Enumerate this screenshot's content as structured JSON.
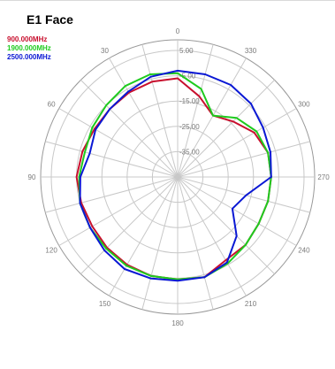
{
  "chart_data": {
    "type": "polar-line",
    "title": "E1 Face",
    "radial_axis": {
      "ticks": [
        "5.00",
        "-5.00",
        "-15.00",
        "-25.00",
        "-35.00"
      ],
      "range_db": [
        -45,
        5
      ]
    },
    "angle_labels": [
      "0",
      "30",
      "60",
      "90",
      "120",
      "150",
      "180",
      "210",
      "240",
      "270",
      "300",
      "330"
    ],
    "grid": true,
    "legend_position": "top-left",
    "series": [
      {
        "name": "900.000MHz",
        "color": "#c8102e",
        "angles": [
          0,
          15,
          30,
          45,
          60,
          75,
          90,
          105,
          120,
          135,
          150,
          165,
          180,
          195,
          210,
          225,
          240,
          255,
          270,
          285,
          300,
          315,
          330,
          345
        ],
        "values": [
          -6,
          -6,
          -6.5,
          -7,
          -7,
          -6,
          -5,
          -5.5,
          -6,
          -5.5,
          -5,
          -4.5,
          -4.5,
          -4,
          -7,
          -7,
          -8,
          -8,
          -8,
          -8,
          -10,
          -14,
          -17,
          -12
        ]
      },
      {
        "name": "1900.000MHz",
        "color": "#1ecb1e",
        "angles": [
          0,
          15,
          30,
          45,
          60,
          75,
          90,
          105,
          120,
          135,
          150,
          165,
          180,
          195,
          210,
          225,
          240,
          255,
          270,
          285,
          300,
          315,
          330,
          345
        ],
        "values": [
          -4,
          -3,
          -3.5,
          -5,
          -6,
          -7,
          -6,
          -5,
          -5,
          -5,
          -4.5,
          -4.5,
          -4.5,
          -4,
          -5.5,
          -7,
          -8,
          -8,
          -8,
          -8,
          -9,
          -12,
          -17,
          -9
        ]
      },
      {
        "name": "2500.000MHz",
        "color": "#0a18d4",
        "angles": [
          0,
          15,
          30,
          45,
          60,
          75,
          90,
          105,
          120,
          135,
          150,
          165,
          180,
          195,
          210,
          225,
          240,
          255,
          270,
          285,
          300,
          315,
          330,
          345
        ],
        "values": [
          -3,
          -4,
          -6,
          -7,
          -7.5,
          -9,
          -6.5,
          -5,
          -5,
          -4,
          -3,
          -3.5,
          -4,
          -4,
          -6,
          -12,
          -20,
          -17,
          -8,
          -7,
          -6,
          -4,
          -3,
          -3
        ]
      }
    ]
  }
}
